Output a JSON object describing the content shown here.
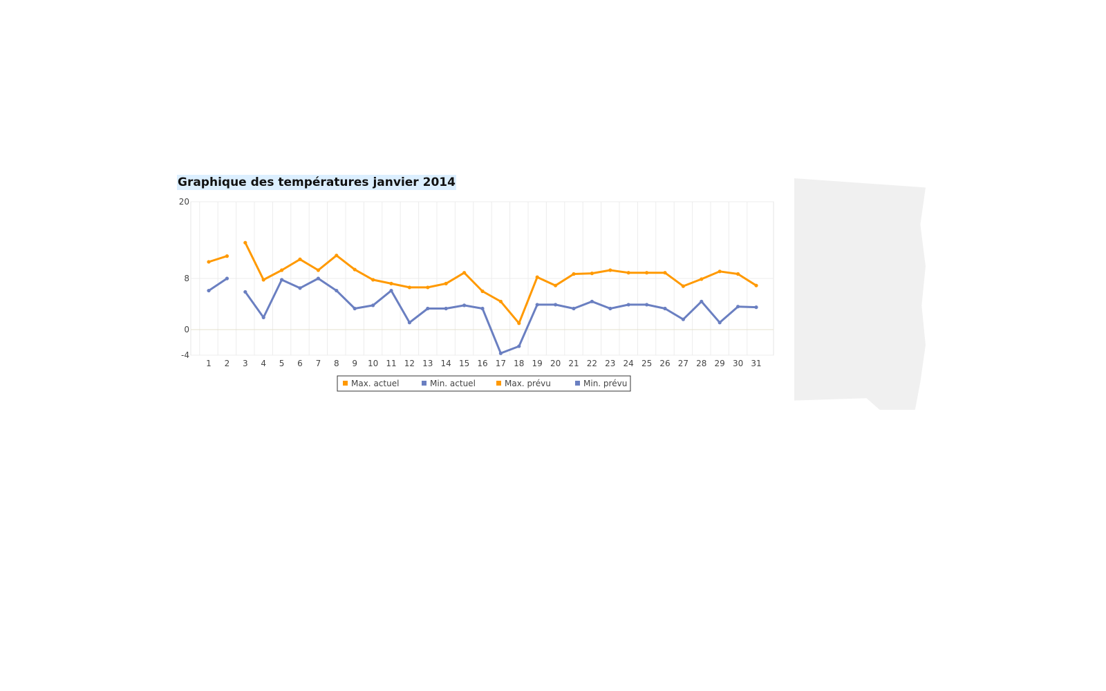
{
  "chart_data": {
    "type": "line",
    "title": "Graphique des températures janvier 2014",
    "xlabel": "",
    "ylabel": "",
    "categories": [
      "1",
      "2",
      "3",
      "4",
      "5",
      "6",
      "7",
      "8",
      "9",
      "10",
      "11",
      "12",
      "13",
      "14",
      "15",
      "16",
      "17",
      "18",
      "19",
      "20",
      "21",
      "22",
      "23",
      "24",
      "25",
      "26",
      "27",
      "28",
      "29",
      "30",
      "31"
    ],
    "y_ticks": [
      20,
      8,
      0,
      -4
    ],
    "ylim": [
      -4,
      20
    ],
    "grid": true,
    "legend_position": "bottom",
    "series": [
      {
        "name": "Max. actuel",
        "color": "#FF9900",
        "values": [
          10.6,
          11.5,
          null,
          null,
          null,
          null,
          null,
          null,
          null,
          null,
          null,
          null,
          null,
          null,
          null,
          null,
          null,
          null,
          null,
          null,
          null,
          null,
          null,
          null,
          null,
          null,
          null,
          null,
          null,
          null,
          null
        ]
      },
      {
        "name": "Min. actuel",
        "color": "#6A7FC1",
        "values": [
          6.1,
          8.0,
          null,
          null,
          null,
          null,
          null,
          null,
          null,
          null,
          null,
          null,
          null,
          null,
          null,
          null,
          null,
          null,
          null,
          null,
          null,
          null,
          null,
          null,
          null,
          null,
          null,
          null,
          null,
          null,
          null
        ]
      },
      {
        "name": "Max. prévu",
        "color": "#FF9900",
        "values": [
          null,
          null,
          13.6,
          7.8,
          9.3,
          11.0,
          9.3,
          11.6,
          9.4,
          7.8,
          7.2,
          6.6,
          6.6,
          7.2,
          8.9,
          6.0,
          4.4,
          1.0,
          8.2,
          6.9,
          8.7,
          8.8,
          9.3,
          8.9,
          8.9,
          8.9,
          6.8,
          7.9,
          9.1,
          8.7,
          6.9
        ]
      },
      {
        "name": "Min. prévu",
        "color": "#6A7FC1",
        "values": [
          null,
          null,
          5.9,
          1.9,
          7.8,
          6.5,
          8.0,
          6.1,
          3.3,
          3.8,
          6.1,
          1.1,
          3.3,
          3.3,
          3.8,
          3.3,
          -3.7,
          -2.6,
          3.9,
          3.9,
          3.3,
          4.4,
          3.3,
          3.9,
          3.9,
          3.3,
          1.6,
          4.4,
          1.1,
          3.6,
          3.5
        ]
      }
    ]
  }
}
